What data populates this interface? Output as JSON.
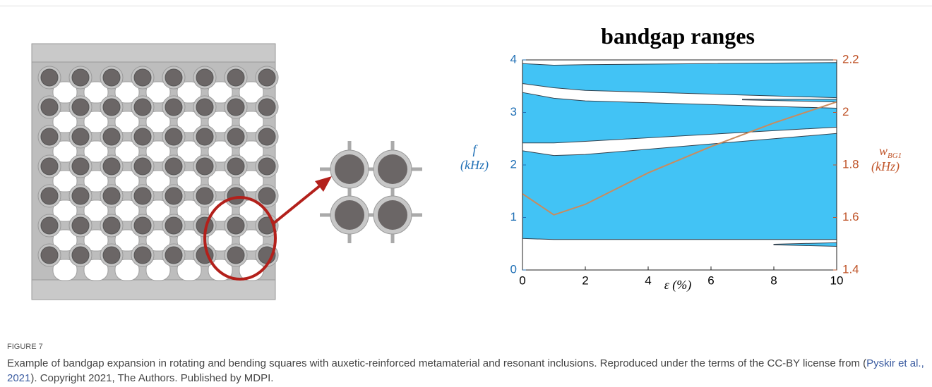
{
  "figure": {
    "chart_data": {
      "type": "range-area",
      "title": "bandgap ranges",
      "ylabel": {
        "symbol": "f",
        "unit": "(kHz)",
        "color": "#1f6fb5"
      },
      "y2label": {
        "symbol": "w",
        "subscript": "BG1",
        "unit": "(kHz)",
        "color": "#c0552a"
      },
      "xlabel": "ε (%)",
      "xlim": [
        0,
        10
      ],
      "xticks": [
        0,
        2,
        4,
        6,
        8,
        10
      ],
      "ylim": [
        0,
        4
      ],
      "yticks": [
        0,
        1,
        2,
        3,
        4
      ],
      "y2lim": [
        1.4,
        2.2
      ],
      "y2ticks": [
        1.4,
        1.6,
        1.8,
        2,
        2.2
      ],
      "series": [
        {
          "color": "#42c3f5",
          "x": [
            0,
            1,
            2,
            10
          ],
          "lower": [
            3.55,
            3.47,
            3.42,
            3.28
          ],
          "upper": [
            3.93,
            3.9,
            3.91,
            3.95
          ]
        },
        {
          "color": "#42c3f5",
          "x": [
            0,
            1,
            2,
            10
          ],
          "lower": [
            2.42,
            2.42,
            2.45,
            2.72
          ],
          "upper": [
            3.38,
            3.27,
            3.22,
            3.08
          ]
        },
        {
          "color": "#42c3f5",
          "x": [
            0,
            1,
            2,
            10
          ],
          "lower": [
            0.6,
            0.58,
            0.58,
            0.58
          ],
          "upper": [
            2.27,
            2.18,
            2.2,
            2.6
          ]
        },
        {
          "color": "#42c3f5",
          "x": [
            7,
            10
          ],
          "lower": [
            3.24,
            3.2
          ],
          "upper": [
            3.25,
            3.25
          ]
        },
        {
          "color": "#42c3f5",
          "x": [
            8,
            10
          ],
          "lower": [
            0.48,
            0.45
          ],
          "upper": [
            0.49,
            0.52
          ]
        },
        {
          "type": "line",
          "axis": "y2",
          "color": "#c98b5e",
          "x": [
            0,
            1,
            2,
            4,
            6,
            8,
            10
          ],
          "values": [
            1.69,
            1.61,
            1.65,
            1.77,
            1.87,
            1.96,
            2.04
          ]
        }
      ]
    },
    "label": "FIGURE 7",
    "caption": {
      "before": "Example of bandgap expansion in rotating and bending squares with auxetic-reinforced metamaterial and resonant inclusions. Reproduced under the terms of the CC-BY license from (",
      "link": "Pyskir et al., 2021",
      "after": "). Copyright 2021, The Authors. Published by MDPI."
    }
  }
}
